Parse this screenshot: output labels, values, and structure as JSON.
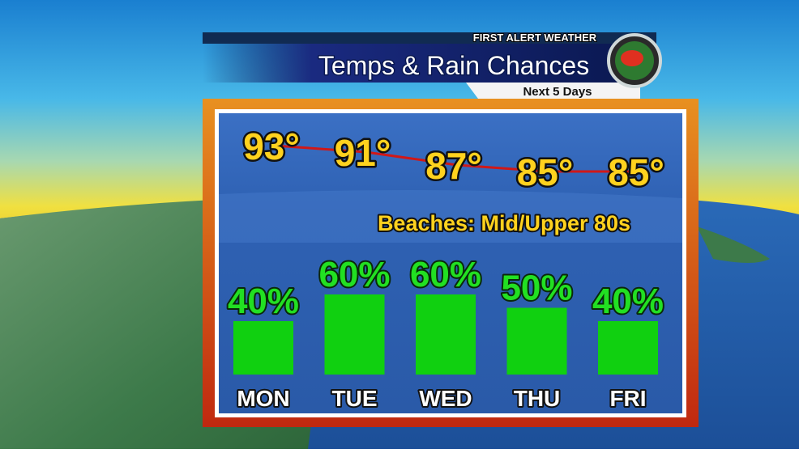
{
  "header": {
    "brand": "FIRST ALERT WEATHER",
    "title": "Temps & Rain Chances",
    "subtitle": "Next 5 Days"
  },
  "chart_data": [
    {
      "type": "line",
      "annotation": "Beaches: Mid/Upper 80s",
      "values": [
        93,
        91,
        87,
        85,
        85
      ],
      "value_labels": [
        "93°",
        "91°",
        "87°",
        "85°",
        "85°"
      ],
      "color": "#d01818",
      "label_color": "#ffd21e"
    },
    {
      "type": "bar",
      "categories": [
        "MON",
        "TUE",
        "WED",
        "THU",
        "FRI"
      ],
      "values": [
        40,
        60,
        60,
        50,
        40
      ],
      "value_labels": [
        "40%",
        "60%",
        "60%",
        "50%",
        "40%"
      ],
      "color": "#10d010",
      "label_color": "#22e022"
    }
  ]
}
